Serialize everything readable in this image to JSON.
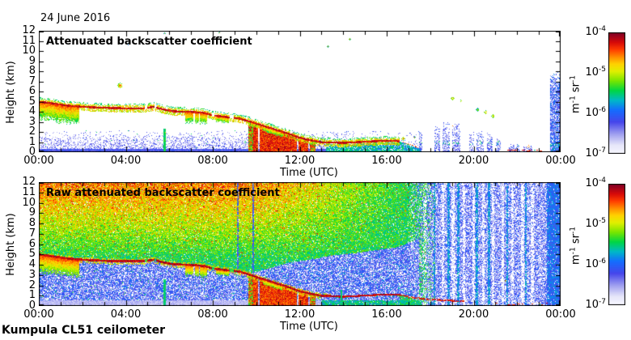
{
  "figure": {
    "date_label": "24 June 2016",
    "footer_label": "Kumpula CL51 ceilometer",
    "background": "#ffffff",
    "text_color": "#000000"
  },
  "palette": {
    "stops": [
      [
        0,
        248,
        248,
        255
      ],
      [
        0.07,
        230,
        230,
        250
      ],
      [
        0.16,
        160,
        160,
        240
      ],
      [
        0.26,
        70,
        70,
        235
      ],
      [
        0.36,
        20,
        110,
        255
      ],
      [
        0.44,
        0,
        185,
        200
      ],
      [
        0.52,
        0,
        215,
        70
      ],
      [
        0.6,
        120,
        230,
        0
      ],
      [
        0.68,
        225,
        240,
        0
      ],
      [
        0.74,
        255,
        210,
        0
      ],
      [
        0.8,
        255,
        140,
        0
      ],
      [
        0.86,
        255,
        60,
        0
      ],
      [
        0.92,
        215,
        10,
        10
      ],
      [
        1,
        125,
        0,
        40
      ]
    ]
  },
  "chart_data": [
    {
      "id": "attenuated",
      "type": "heatmap",
      "title": "Attenuated backscatter coefficient",
      "xlabel": "Time (UTC)",
      "ylabel": "Height (km)",
      "x_tick_labels": [
        "00:00",
        "04:00",
        "08:00",
        "12:00",
        "16:00",
        "20:00",
        "00:00"
      ],
      "x_tick_hours": [
        0,
        4,
        8,
        12,
        16,
        20,
        24
      ],
      "x_minor_tick_every_hours": 1,
      "x_range_hours": [
        0,
        24
      ],
      "y_tick_values": [
        0,
        1,
        2,
        3,
        4,
        5,
        6,
        7,
        8,
        9,
        10,
        11,
        12
      ],
      "y_range_km": [
        0,
        12
      ],
      "grid": false,
      "colorbar": {
        "scale": "log10",
        "min": 1e-07,
        "max": 0.0001,
        "tick_labels": [
          {
            "b": "10",
            "e": "-4"
          },
          {
            "b": "10",
            "e": "-5"
          },
          {
            "b": "10",
            "e": "-6"
          },
          {
            "b": "10",
            "e": "-7"
          }
        ],
        "unit_parts": [
          {
            "t": "m"
          },
          {
            "s": "-1"
          },
          {
            "t": " sr"
          },
          {
            "s": "-1"
          }
        ]
      },
      "features": {
        "layer_path": [
          [
            0,
            4.95
          ],
          [
            0.6,
            4.8
          ],
          [
            1.2,
            4.6
          ],
          [
            2,
            4.45
          ],
          [
            3,
            4.35
          ],
          [
            4,
            4.3
          ],
          [
            4.8,
            4.3
          ],
          [
            5.3,
            4.45
          ],
          [
            5.7,
            4.2
          ],
          [
            6.2,
            4.0
          ],
          [
            7,
            3.95
          ],
          [
            7.6,
            3.85
          ],
          [
            8,
            3.6
          ],
          [
            8.6,
            3.45
          ],
          [
            9.2,
            3.3
          ],
          [
            9.7,
            3.0
          ],
          [
            10.2,
            2.65
          ],
          [
            10.8,
            2.25
          ],
          [
            11.4,
            1.85
          ],
          [
            12,
            1.4
          ],
          [
            12.5,
            1.15
          ],
          [
            13,
            0.95
          ],
          [
            14,
            0.88
          ],
          [
            15,
            1.0
          ],
          [
            16,
            1.1
          ],
          [
            16.6,
            1.05
          ]
        ],
        "layer_gaps": [
          [
            4.88,
            4.97
          ],
          [
            5.32,
            5.4
          ],
          [
            7.98,
            8.08
          ],
          [
            8.8,
            8.95
          ]
        ],
        "blobs": [
          [
            0,
            1.85,
            1.7
          ],
          [
            6.75,
            7.75,
            1.05
          ],
          [
            8.15,
            8.75,
            0.55
          ],
          [
            10.3,
            11.2,
            0.5
          ]
        ],
        "blob_gaps": [
          [
            7.1,
            7.17
          ],
          [
            7.35,
            7.42
          ]
        ],
        "rain": {
          "t0": 9.65,
          "t1": 12.72,
          "gaps": [
            [
              10.1,
              10.16
            ],
            [
              11.88,
              11.93
            ],
            [
              12.38,
              12.46
            ]
          ]
        },
        "green_streaks": [
          [
            5.78,
            0.1,
            2.35
          ]
        ],
        "ground_noise": {
          "t_end": 13.2,
          "h_max": 2.2,
          "solid_below": 0.35
        },
        "low_band": {
          "t0": 13.0,
          "t1": 17.6
        },
        "speckle_columns": [
          [
            17.55,
            0.12,
            2.3
          ],
          [
            18.35,
            0.25,
            2.6
          ],
          [
            18.75,
            0.3,
            2.9
          ],
          [
            19.2,
            0.35,
            2.8
          ],
          [
            19.9,
            0.2,
            2.0
          ],
          [
            20.3,
            0.3,
            2.1
          ],
          [
            20.75,
            0.25,
            1.9
          ],
          [
            21.15,
            0.2,
            1.3
          ],
          [
            21.9,
            0.5,
            0.8
          ],
          [
            22.5,
            0.4,
            0.7
          ]
        ],
        "dots": [
          [
            3.75,
            6.6,
            3,
            0.88
          ],
          [
            4.1,
            10.7,
            1,
            0.75
          ],
          [
            5.8,
            11.75,
            1,
            0.72
          ],
          [
            8.3,
            11.8,
            1,
            0.78
          ],
          [
            13.3,
            10.45,
            1,
            0.8
          ],
          [
            14.3,
            11.2,
            1,
            0.85
          ],
          [
            19.05,
            5.3,
            2,
            0.85
          ],
          [
            19.4,
            5.05,
            1,
            0.9
          ],
          [
            20.2,
            4.2,
            2,
            0.75
          ],
          [
            20.55,
            4.0,
            2,
            0.85
          ],
          [
            20.9,
            3.55,
            2,
            0.8
          ],
          [
            16.75,
            1.35,
            2,
            0.85
          ],
          [
            17.3,
            1.5,
            1,
            0.8
          ]
        ],
        "right_column": {
          "t0": 23.5,
          "h_top": 8.2
        },
        "ground_dashes": {
          "t0": 21.1,
          "t1": 23.3,
          "h": 0.18
        }
      }
    },
    {
      "id": "raw",
      "type": "heatmap",
      "title": "Raw attenuated backscatter coefficient",
      "xlabel": "Time (UTC)",
      "ylabel": "Height (km)",
      "x_tick_labels": [
        "00:00",
        "04:00",
        "08:00",
        "12:00",
        "16:00",
        "20:00",
        "00:00"
      ],
      "x_tick_hours": [
        0,
        4,
        8,
        12,
        16,
        20,
        24
      ],
      "x_minor_tick_every_hours": 1,
      "x_range_hours": [
        0,
        24
      ],
      "y_tick_values": [
        0,
        1,
        2,
        3,
        4,
        5,
        6,
        7,
        8,
        9,
        10,
        11,
        12
      ],
      "y_range_km": [
        0,
        12
      ],
      "grid": false,
      "colorbar": {
        "scale": "log10",
        "min": 1e-07,
        "max": 0.0001,
        "tick_labels": [
          {
            "b": "10",
            "e": "-4"
          },
          {
            "b": "10",
            "e": "-5"
          },
          {
            "b": "10",
            "e": "-6"
          },
          {
            "b": "10",
            "e": "-7"
          }
        ],
        "unit_parts": [
          {
            "t": "m"
          },
          {
            "s": "-1"
          },
          {
            "t": " sr"
          },
          {
            "s": "-1"
          }
        ]
      },
      "features": {
        "blue_zone": [
          [
            9.5,
            3.0
          ],
          [
            10.5,
            3.6
          ],
          [
            11.5,
            4.2
          ],
          [
            12.5,
            4.5
          ],
          [
            13.5,
            4.9
          ],
          [
            14.5,
            5.1
          ],
          [
            15.5,
            5.4
          ],
          [
            16.5,
            5.7
          ],
          [
            17.5,
            6.5
          ]
        ],
        "transition_hours": [
          16.9,
          18.3
        ],
        "line_ext": [
          [
            17.2,
            0.8
          ],
          [
            18,
            0.62
          ],
          [
            19,
            0.5
          ],
          [
            19.6,
            0.45
          ]
        ],
        "white_stripes": [
          17.15,
          17.75,
          18.6,
          19.05,
          19.55,
          20.0,
          20.45,
          20.9,
          21.35,
          21.8,
          22.25,
          22.7
        ],
        "green_stripes": [
          18.2,
          18.85,
          19.3,
          20.15,
          20.7,
          21.55,
          22.4
        ],
        "blue_stripes_early": [
          9.15,
          9.85
        ],
        "green_streaks": [
          [
            5.78,
            0.1,
            2.55
          ],
          [
            13.92,
            0.07,
            1.6
          ]
        ],
        "right_dense": {
          "t0": 23.35
        },
        "ground_dashes": {
          "t0": 21.0,
          "t1": 23.4,
          "h": 0.2
        },
        "dot": [
          21.45,
          2.5
        ]
      }
    }
  ]
}
